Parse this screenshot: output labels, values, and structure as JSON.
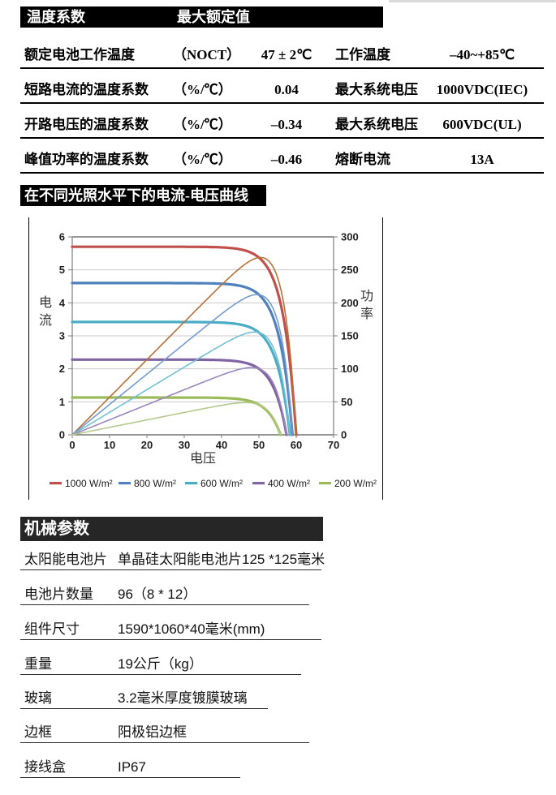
{
  "page": {
    "background": "#ffffff"
  },
  "temp_table": {
    "header": {
      "col1": "温度系数",
      "col2": "最大额定值"
    },
    "rows": [
      {
        "label": "额定电池工作温度",
        "unit": "（NOCT）",
        "value": "47 ± 2℃",
        "label2": "工作温度",
        "value2": "–40~+85℃"
      },
      {
        "label": "短路电流的温度系数",
        "unit": "（%/℃）",
        "value": "0.04",
        "label2": "最大系统电压",
        "value2": "1000VDC(IEC)"
      },
      {
        "label": "开路电压的温度系数",
        "unit": "（%/℃）",
        "value": "–0.34",
        "label2": "最大系统电压",
        "value2": "600VDC(UL)"
      },
      {
        "label": "峰值功率的温度系数",
        "unit": "（%/℃）",
        "value": "–0.46",
        "label2": "熔断电流",
        "value2": "13A"
      }
    ]
  },
  "iv_section": {
    "title": "在不同光照水平下的电流-电压曲线"
  },
  "chart_data": {
    "type": "line",
    "title": "在不同光照水平下的电流-电压曲线",
    "xlabel": "电压",
    "ylabel_left": "电流",
    "ylabel_right": "功率",
    "xlim": [
      0,
      70
    ],
    "ylim_left": [
      0,
      6
    ],
    "ylim_right": [
      0,
      300
    ],
    "x_ticks": [
      0,
      10,
      20,
      30,
      40,
      50,
      60,
      70
    ],
    "y_ticks_left": [
      0,
      1,
      2,
      3,
      4,
      5,
      6
    ],
    "y_ticks_right": [
      0,
      50,
      100,
      150,
      200,
      250,
      300
    ],
    "grid": "horizontal",
    "legend_position": "bottom",
    "right_axis_scale": 50,
    "series": [
      {
        "name": "1000 W/m²",
        "color": "#C0504D",
        "power_color": "#BA7136",
        "isc": 5.7,
        "voc": 60.0,
        "pmax": 258
      },
      {
        "name": "800 W/m²",
        "color": "#4F81BD",
        "power_color": "#739CCD",
        "isc": 4.6,
        "voc": 59.0,
        "pmax": 205
      },
      {
        "name": "600 W/m²",
        "color": "#4BACC6",
        "power_color": "#72C0D4",
        "isc": 3.42,
        "voc": 58.3,
        "pmax": 155
      },
      {
        "name": "400 W/m²",
        "color": "#8064A2",
        "power_color": "#9C87BB",
        "isc": 2.28,
        "voc": 57.4,
        "pmax": 100
      },
      {
        "name": "200 W/m²",
        "color": "#9BBB59",
        "power_color": "#B3CA8B",
        "isc": 1.13,
        "voc": 55.8,
        "pmax": 50
      }
    ]
  },
  "mech_table": {
    "title": "机械参数",
    "rows": [
      {
        "label": "太阳能电池片",
        "value": "单晶硅太阳能电池片125 *125毫米"
      },
      {
        "label": "电池片数量",
        "value": "96（8 * 12）"
      },
      {
        "label": "组件尺寸",
        "value": "1590*1060*40毫米(mm)"
      },
      {
        "label": "重量",
        "value": "19公斤（kg）"
      },
      {
        "label": "玻璃",
        "value": "3.2毫米厚度镀膜玻璃"
      },
      {
        "label": "边框",
        "value": "阳极铝边框"
      },
      {
        "label": "接线盒",
        "value": "IP67"
      }
    ]
  }
}
